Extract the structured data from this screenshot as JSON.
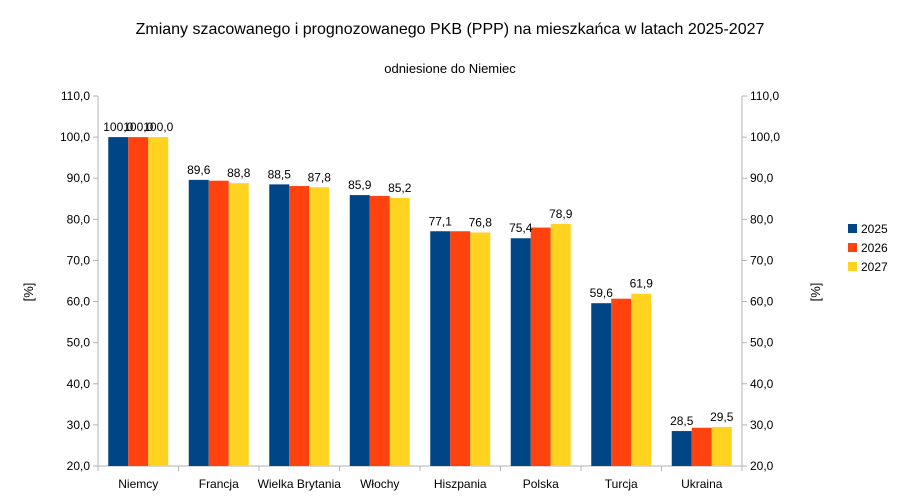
{
  "chart_data": {
    "type": "bar",
    "title": "Zmiany szacowanego i prognozowanego PKB (PPP) na mieszkańca  w latach 2025-2027",
    "subtitle": "odniesione do Niemiec",
    "ylabel": "[%]",
    "ylabel_right": "[%]",
    "ylim": [
      20,
      110
    ],
    "ytick_step": 10,
    "yticks": [
      "20,0",
      "30,0",
      "40,0",
      "50,0",
      "60,0",
      "70,0",
      "80,0",
      "90,0",
      "100,0",
      "110,0"
    ],
    "grid": false,
    "legend_position": "right",
    "categories": [
      "Niemcy",
      "Francja",
      "Wielka Brytania",
      "Włochy",
      "Hiszpania",
      "Polska",
      "Turcja",
      "Ukraina"
    ],
    "series": [
      {
        "name": "2025",
        "color": "#004586",
        "values": [
          100.0,
          89.6,
          88.5,
          85.9,
          77.1,
          75.4,
          59.6,
          28.5
        ]
      },
      {
        "name": "2026",
        "color": "#ff420e",
        "values": [
          100.0,
          89.4,
          88.1,
          85.7,
          77.1,
          78.0,
          60.7,
          29.3
        ]
      },
      {
        "name": "2027",
        "color": "#ffd320",
        "values": [
          100.0,
          88.8,
          87.8,
          85.2,
          76.8,
          78.9,
          61.9,
          29.5
        ]
      }
    ],
    "data_labels": [
      {
        "category_index": 0,
        "series_index": 0,
        "text": "100,0"
      },
      {
        "category_index": 0,
        "series_index": 1,
        "text": "100,0"
      },
      {
        "category_index": 0,
        "series_index": 2,
        "text": "100,0"
      },
      {
        "category_index": 1,
        "series_index": 0,
        "text": "89,6"
      },
      {
        "category_index": 1,
        "series_index": 2,
        "text": "88,8"
      },
      {
        "category_index": 2,
        "series_index": 0,
        "text": "88,5"
      },
      {
        "category_index": 2,
        "series_index": 2,
        "text": "87,8"
      },
      {
        "category_index": 3,
        "series_index": 0,
        "text": "85,9"
      },
      {
        "category_index": 3,
        "series_index": 2,
        "text": "85,2"
      },
      {
        "category_index": 4,
        "series_index": 0,
        "text": "77,1"
      },
      {
        "category_index": 4,
        "series_index": 2,
        "text": "76,8"
      },
      {
        "category_index": 5,
        "series_index": 0,
        "text": "75,4"
      },
      {
        "category_index": 5,
        "series_index": 2,
        "text": "78,9"
      },
      {
        "category_index": 6,
        "series_index": 0,
        "text": "59,6"
      },
      {
        "category_index": 6,
        "series_index": 2,
        "text": "61,9"
      },
      {
        "category_index": 7,
        "series_index": 0,
        "text": "28,5"
      },
      {
        "category_index": 7,
        "series_index": 2,
        "text": "29,5"
      }
    ]
  }
}
